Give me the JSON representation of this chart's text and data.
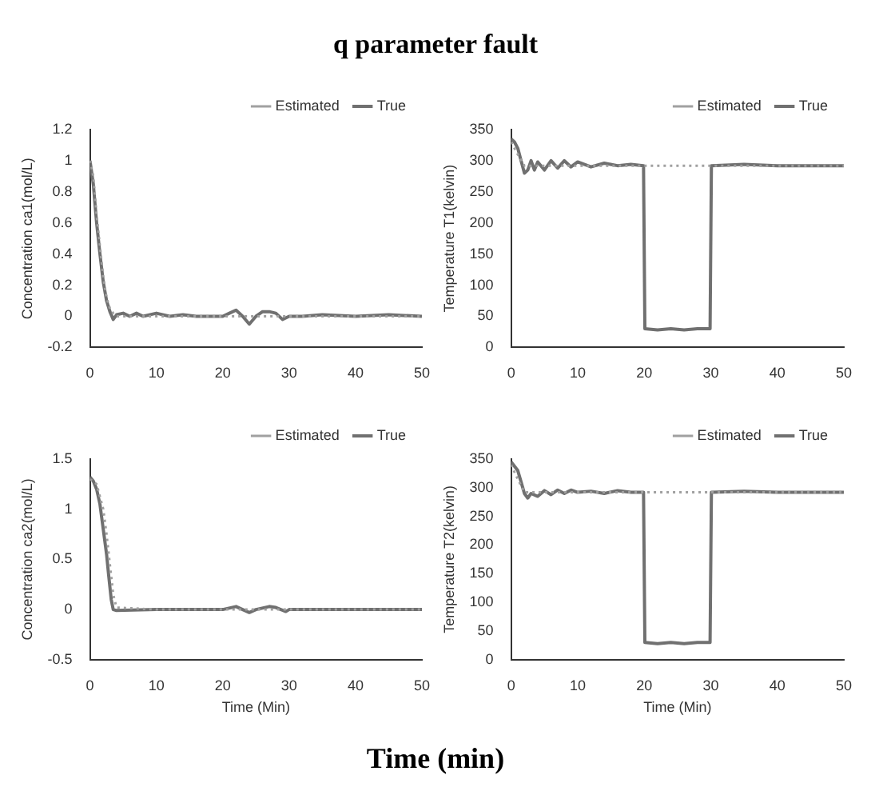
{
  "chart_data": [
    {
      "type": "line",
      "title": "q parameter fault",
      "ylabel": "Concentration ca1(mol/L)",
      "xlim": [
        0,
        50
      ],
      "xticks": [
        0,
        10,
        20,
        30,
        40,
        50
      ],
      "ylim": [
        -0.2,
        1.2
      ],
      "yticks": [
        -0.2,
        0,
        0.2,
        0.4,
        0.6,
        0.8,
        1,
        1.2
      ],
      "grid": false,
      "legend": "top right",
      "marker": "none",
      "series": [
        {
          "name": "True",
          "color": "#707070",
          "line_style": "solid",
          "x": [
            0,
            0.5,
            1,
            1.5,
            2,
            2.5,
            3,
            3.5,
            4,
            5,
            6,
            7,
            8,
            10,
            12,
            14,
            16,
            18,
            20,
            21,
            22,
            23,
            24,
            25,
            26,
            27,
            28,
            29,
            30,
            32,
            35,
            40,
            45,
            50
          ],
          "values": [
            1.0,
            0.85,
            0.6,
            0.4,
            0.22,
            0.1,
            0.03,
            -0.02,
            0.01,
            0.02,
            0.0,
            0.02,
            0.0,
            0.02,
            0.0,
            0.01,
            0.0,
            0.0,
            0.0,
            0.02,
            0.04,
            0.0,
            -0.05,
            0.0,
            0.03,
            0.03,
            0.02,
            -0.02,
            0.0,
            0.0,
            0.01,
            0.0,
            0.01,
            0.0
          ]
        },
        {
          "name": "Estimated",
          "color": "#a0a0a0",
          "line_style": "dotted",
          "x": [
            0,
            0.5,
            1,
            1.5,
            2,
            2.5,
            3,
            3.5,
            4,
            10,
            20,
            30,
            40,
            50
          ],
          "values": [
            1.0,
            0.9,
            0.65,
            0.45,
            0.25,
            0.12,
            0.05,
            0.02,
            0.0,
            0.0,
            0.0,
            0.0,
            0.0,
            0.0
          ]
        }
      ]
    },
    {
      "type": "line",
      "ylabel": "Temperature T1(kelvin)",
      "xlim": [
        0,
        50
      ],
      "xticks": [
        0,
        10,
        20,
        30,
        40,
        50
      ],
      "ylim": [
        0,
        350
      ],
      "yticks": [
        0,
        50,
        100,
        150,
        200,
        250,
        300,
        350
      ],
      "grid": false,
      "legend": "top right",
      "marker": "none",
      "series": [
        {
          "name": "True",
          "color": "#707070",
          "line_style": "solid",
          "x": [
            0,
            0.5,
            1,
            1.5,
            2,
            2.5,
            3,
            3.5,
            4,
            5,
            6,
            7,
            8,
            9,
            10,
            12,
            14,
            16,
            18,
            19.9,
            20.1,
            22,
            24,
            26,
            28,
            29.9,
            30.1,
            35,
            40,
            45,
            50
          ],
          "values": [
            335,
            330,
            320,
            300,
            280,
            285,
            300,
            285,
            298,
            285,
            300,
            288,
            300,
            290,
            298,
            290,
            296,
            292,
            294,
            292,
            30,
            28,
            30,
            28,
            30,
            30,
            292,
            294,
            292,
            292,
            292
          ]
        },
        {
          "name": "Estimated",
          "color": "#a0a0a0",
          "line_style": "dotted",
          "x": [
            0,
            1,
            2,
            50
          ],
          "values": [
            330,
            310,
            292,
            292
          ]
        }
      ]
    },
    {
      "type": "line",
      "xlabel": "Time (Min)",
      "ylabel": "Concentration ca2(mol/L)",
      "xlim": [
        0,
        50
      ],
      "xticks": [
        0,
        10,
        20,
        30,
        40,
        50
      ],
      "ylim": [
        -0.5,
        1.5
      ],
      "yticks": [
        -0.5,
        0,
        0.5,
        1,
        1.5
      ],
      "grid": false,
      "legend": "top right",
      "marker": "none",
      "series": [
        {
          "name": "True",
          "color": "#707070",
          "line_style": "solid",
          "x": [
            0,
            0.5,
            1,
            1.5,
            2,
            2.5,
            2.8,
            3.2,
            3.5,
            4,
            10,
            20,
            22,
            23,
            24,
            25,
            27,
            28,
            29.5,
            30,
            40,
            50
          ],
          "values": [
            1.32,
            1.28,
            1.2,
            1.05,
            0.8,
            0.55,
            0.35,
            0.1,
            0.0,
            -0.01,
            0.0,
            0.0,
            0.03,
            0.0,
            -0.03,
            0.0,
            0.03,
            0.02,
            -0.02,
            0.0,
            0.0,
            0.0
          ]
        },
        {
          "name": "Estimated",
          "color": "#a0a0a0",
          "line_style": "dotted",
          "x": [
            0,
            1,
            2,
            2.5,
            3,
            3.5,
            4,
            10,
            20,
            30,
            40,
            50
          ],
          "values": [
            1.3,
            1.25,
            1.0,
            0.75,
            0.45,
            0.15,
            0.02,
            0.0,
            0.0,
            0.0,
            0.0,
            0.0
          ]
        }
      ]
    },
    {
      "type": "line",
      "xlabel": "Time (Min)",
      "ylabel": "Temperature T2(kelvin)",
      "xlim": [
        0,
        50
      ],
      "xticks": [
        0,
        10,
        20,
        30,
        40,
        50
      ],
      "ylim": [
        0,
        350
      ],
      "yticks": [
        0,
        50,
        100,
        150,
        200,
        250,
        300,
        350
      ],
      "grid": false,
      "legend": "top right",
      "marker": "none",
      "annotations": [
        "Time (min)"
      ],
      "series": [
        {
          "name": "True",
          "color": "#707070",
          "line_style": "solid",
          "x": [
            0,
            1,
            1.5,
            2,
            2.5,
            3,
            4,
            5,
            6,
            7,
            8,
            9,
            10,
            12,
            14,
            16,
            18,
            19.9,
            20.1,
            22,
            24,
            26,
            28,
            29.9,
            30.1,
            35,
            40,
            45,
            50
          ],
          "values": [
            345,
            330,
            310,
            290,
            282,
            290,
            285,
            295,
            288,
            296,
            290,
            296,
            292,
            294,
            290,
            295,
            292,
            292,
            30,
            28,
            30,
            28,
            30,
            30,
            292,
            294,
            292,
            292,
            292
          ]
        },
        {
          "name": "Estimated",
          "color": "#a0a0a0",
          "line_style": "dotted",
          "x": [
            0,
            1,
            2,
            50
          ],
          "values": [
            340,
            315,
            292,
            292
          ]
        }
      ]
    }
  ]
}
